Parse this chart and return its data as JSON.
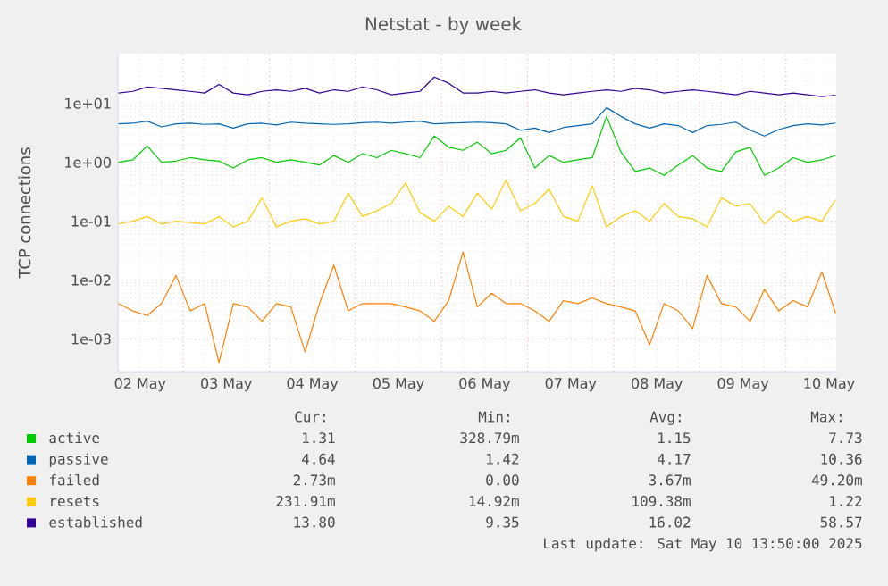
{
  "chart_data": {
    "type": "line",
    "title": "Netstat - by week",
    "ylabel": "TCP connections",
    "log": "y",
    "grid": true,
    "legend": "bottom",
    "line_style": "solid",
    "marker": "none",
    "xlim": [
      "2025-05-02T05:50",
      "2025-05-10T14:00"
    ],
    "xticks": [
      {
        "value": "2025-05-02T12:00",
        "label": "02 May"
      },
      {
        "value": "2025-05-03T12:00",
        "label": "03 May"
      },
      {
        "value": "2025-05-04T12:00",
        "label": "04 May"
      },
      {
        "value": "2025-05-05T12:00",
        "label": "05 May"
      },
      {
        "value": "2025-05-06T12:00",
        "label": "06 May"
      },
      {
        "value": "2025-05-07T12:00",
        "label": "07 May"
      },
      {
        "value": "2025-05-08T12:00",
        "label": "08 May"
      },
      {
        "value": "2025-05-09T12:00",
        "label": "09 May"
      },
      {
        "value": "2025-05-10T12:00",
        "label": "10 May"
      },
      {
        "value": "2025-05-03",
        "label": null
      },
      {
        "value": "2025-05-04",
        "label": null
      },
      {
        "value": "2025-05-05",
        "label": null
      },
      {
        "value": "2025-05-06",
        "label": null
      },
      {
        "value": "2025-05-07",
        "label": null
      },
      {
        "value": "2025-05-08",
        "label": null
      },
      {
        "value": "2025-05-09",
        "label": null
      },
      {
        "value": "2025-05-10",
        "label": null
      }
    ],
    "ylim": [
      0.00028,
      70
    ],
    "yticks": [
      {
        "value": 0.001,
        "label": "1e-03"
      },
      {
        "value": 0.01,
        "label": "1e-02"
      },
      {
        "value": 0.1,
        "label": "1e-01"
      },
      {
        "value": 1,
        "label": "1e+00"
      },
      {
        "value": 10,
        "label": "1e+01"
      }
    ],
    "x": [
      "2025-05-02T06:00",
      "2025-05-02T10:00",
      "2025-05-02T14:00",
      "2025-05-02T18:00",
      "2025-05-02T22:00",
      "2025-05-03T02:00",
      "2025-05-03T06:00",
      "2025-05-03T10:00",
      "2025-05-03T14:00",
      "2025-05-03T18:00",
      "2025-05-03T22:00",
      "2025-05-04T02:00",
      "2025-05-04T06:00",
      "2025-05-04T10:00",
      "2025-05-04T14:00",
      "2025-05-04T18:00",
      "2025-05-04T22:00",
      "2025-05-05T02:00",
      "2025-05-05T06:00",
      "2025-05-05T10:00",
      "2025-05-05T14:00",
      "2025-05-05T18:00",
      "2025-05-05T22:00",
      "2025-05-06T02:00",
      "2025-05-06T06:00",
      "2025-05-06T10:00",
      "2025-05-06T14:00",
      "2025-05-06T18:00",
      "2025-05-06T22:00",
      "2025-05-07T02:00",
      "2025-05-07T06:00",
      "2025-05-07T10:00",
      "2025-05-07T14:00",
      "2025-05-07T18:00",
      "2025-05-07T22:00",
      "2025-05-08T02:00",
      "2025-05-08T06:00",
      "2025-05-08T10:00",
      "2025-05-08T14:00",
      "2025-05-08T18:00",
      "2025-05-08T22:00",
      "2025-05-09T02:00",
      "2025-05-09T06:00",
      "2025-05-09T10:00",
      "2025-05-09T14:00",
      "2025-05-09T18:00",
      "2025-05-09T22:00",
      "2025-05-10T02:00",
      "2025-05-10T06:00",
      "2025-05-10T10:00",
      "2025-05-10T13:50"
    ],
    "series": [
      {
        "name": "active",
        "color": "#00cc00",
        "values": [
          1,
          1.1,
          1.9,
          1,
          1.05,
          1.2,
          1.1,
          1.05,
          0.8,
          1.1,
          1.2,
          1,
          1.1,
          1,
          0.9,
          1.3,
          1,
          1.4,
          1.2,
          1.6,
          1.4,
          1.2,
          2.8,
          1.8,
          1.6,
          2.2,
          1.4,
          1.6,
          2.6,
          0.8,
          1.3,
          1,
          1.1,
          1.2,
          6,
          1.5,
          0.7,
          0.8,
          0.6,
          0.9,
          1.3,
          0.8,
          0.7,
          1.5,
          1.8,
          0.6,
          0.8,
          1.2,
          1,
          1.1,
          1.31
        ]
      },
      {
        "name": "passive",
        "color": "#0066b3",
        "values": [
          4.5,
          4.6,
          5,
          4,
          4.5,
          4.6,
          4.4,
          4.5,
          3.8,
          4.5,
          4.6,
          4.3,
          4.8,
          4.6,
          4.5,
          4.4,
          4.5,
          4.7,
          4.8,
          4.6,
          4.8,
          5,
          4.5,
          4.6,
          4.7,
          4.8,
          4.7,
          4.5,
          3.5,
          3.8,
          3.2,
          3.9,
          4.2,
          4.5,
          8.5,
          6,
          4.5,
          3.8,
          4.5,
          4.2,
          3.2,
          4.2,
          4.4,
          4.8,
          3.5,
          2.8,
          3.6,
          4.2,
          4.5,
          4.3,
          4.64
        ]
      },
      {
        "name": "failed",
        "color": "#ff8000",
        "values": [
          0.004,
          0.003,
          0.0025,
          0.004,
          0.012,
          0.003,
          0.004,
          0.0004,
          0.004,
          0.0035,
          0.002,
          0.004,
          0.0035,
          0.0006,
          0.004,
          0.018,
          0.003,
          0.004,
          0.004,
          0.004,
          0.0035,
          0.003,
          0.002,
          0.0045,
          0.03,
          0.0035,
          0.006,
          0.004,
          0.004,
          0.003,
          0.002,
          0.0045,
          0.004,
          0.005,
          0.004,
          0.0035,
          0.003,
          0.0008,
          0.004,
          0.003,
          0.0015,
          0.012,
          0.004,
          0.0035,
          0.002,
          0.007,
          0.003,
          0.0045,
          0.0035,
          0.014,
          0.00273
        ]
      },
      {
        "name": "resets",
        "color": "#ffcc00",
        "values": [
          0.09,
          0.1,
          0.12,
          0.09,
          0.1,
          0.095,
          0.09,
          0.12,
          0.08,
          0.1,
          0.25,
          0.08,
          0.1,
          0.11,
          0.09,
          0.1,
          0.3,
          0.12,
          0.15,
          0.2,
          0.45,
          0.14,
          0.1,
          0.18,
          0.12,
          0.3,
          0.16,
          0.5,
          0.15,
          0.2,
          0.35,
          0.12,
          0.1,
          0.4,
          0.08,
          0.12,
          0.15,
          0.1,
          0.2,
          0.12,
          0.11,
          0.08,
          0.25,
          0.18,
          0.2,
          0.09,
          0.15,
          0.1,
          0.12,
          0.1,
          0.232
        ]
      },
      {
        "name": "established",
        "color": "#330099",
        "values": [
          15,
          16,
          19,
          18,
          17,
          16,
          15,
          21,
          15,
          14,
          16,
          17,
          16,
          18,
          15,
          17,
          16,
          19,
          17,
          14,
          15,
          16,
          28,
          22,
          15,
          15,
          16,
          15,
          16,
          17,
          15,
          14,
          15,
          16,
          17,
          16,
          18,
          17,
          15,
          16,
          17,
          16,
          15,
          14,
          16,
          15,
          14,
          15,
          14,
          13,
          13.8
        ]
      }
    ],
    "annotations": [
      "Cur:",
      "Min:",
      "Avg:",
      "Max:",
      "1.31",
      "328.79m",
      "1.15",
      "7.73",
      "4.64",
      "1.42",
      "4.17",
      "10.36",
      "2.73m",
      "0.00",
      "3.67m",
      "49.20m",
      "231.91m",
      "14.92m",
      "109.38m",
      "1.22",
      "13.80",
      "9.35",
      "16.02",
      "58.57",
      "Last update:  Sat May 10 13:50:00 2025"
    ]
  }
}
